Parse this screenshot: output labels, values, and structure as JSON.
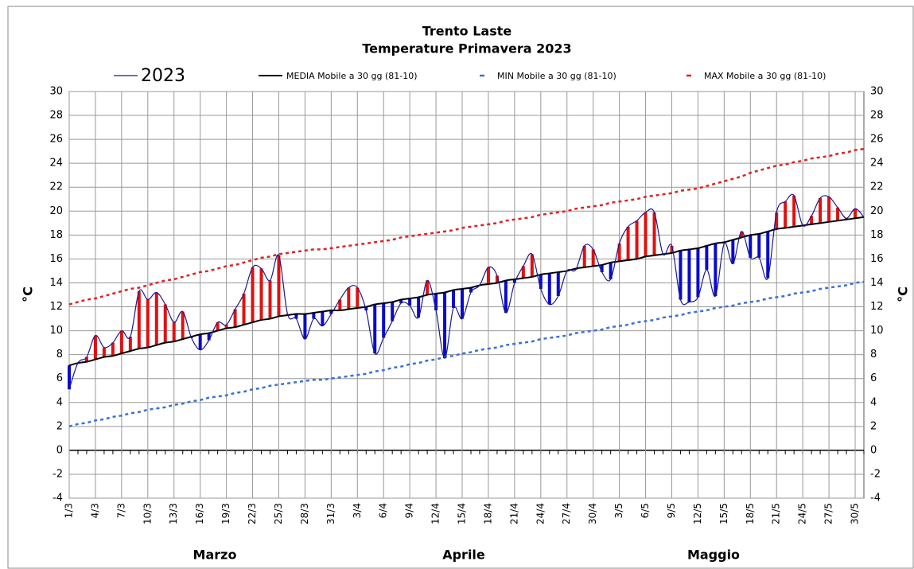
{
  "chart_data": {
    "type": "line",
    "title": "Trento Laste",
    "subtitle": "Temperature Primavera 2023",
    "y_label": "°C",
    "y2_label": "°C",
    "months": [
      "Marzo",
      "Aprile",
      "Maggio"
    ],
    "categories": [
      "1/3",
      null,
      null,
      "4/3",
      null,
      null,
      "7/3",
      null,
      null,
      "10/3",
      null,
      null,
      "13/3",
      null,
      null,
      "16/3",
      null,
      null,
      "19/3",
      null,
      null,
      "22/3",
      null,
      null,
      "25/3",
      null,
      null,
      "28/3",
      null,
      null,
      "31/3",
      null,
      null,
      "3/4",
      null,
      null,
      "6/4",
      null,
      null,
      "9/4",
      null,
      null,
      "12/4",
      null,
      null,
      "15/4",
      null,
      null,
      "18/4",
      null,
      null,
      "21/4",
      null,
      null,
      "24/4",
      null,
      null,
      "27/4",
      null,
      null,
      "30/4",
      null,
      null,
      "3/5",
      null,
      null,
      "6/5",
      null,
      null,
      "9/5",
      null,
      null,
      "12/5",
      null,
      null,
      "15/5",
      null,
      null,
      "18/5",
      null,
      null,
      "21/5",
      null,
      null,
      "24/5",
      null,
      null,
      "27/5",
      null,
      null,
      "30/5",
      null
    ],
    "series": [
      {
        "name": "2023",
        "color": "#1a1a8c",
        "values": [
          5.1,
          7.3,
          7.8,
          9.6,
          8.6,
          9.0,
          10.0,
          9.5,
          13.3,
          12.6,
          13.2,
          12.2,
          10.7,
          11.6,
          9.4,
          8.4,
          9.2,
          10.7,
          10.5,
          11.8,
          13.1,
          15.3,
          15.2,
          14.2,
          16.3,
          11.4,
          11.0,
          9.3,
          11.0,
          10.4,
          11.4,
          12.6,
          13.6,
          13.6,
          11.7,
          8.1,
          9.4,
          10.8,
          12.3,
          12.1,
          11.1,
          14.2,
          11.7,
          7.7,
          11.9,
          11.0,
          13.2,
          13.8,
          15.3,
          14.6,
          11.5,
          14.0,
          15.4,
          16.4,
          13.5,
          12.2,
          12.9,
          15.0,
          15.1,
          17.1,
          16.8,
          14.9,
          14.3,
          17.3,
          18.7,
          19.2,
          19.9,
          19.9,
          16.4,
          17.1,
          12.6,
          12.4,
          12.8,
          15.1,
          12.9,
          17.3,
          15.6,
          18.3,
          16.1,
          16.1,
          14.4,
          19.9,
          20.8,
          21.3,
          18.8,
          19.6,
          21.1,
          21.2,
          20.3,
          19.4,
          20.2,
          19.5
        ]
      },
      {
        "name": "MEDIA Mobile a 30 gg (81-10)",
        "color": "#000000",
        "values": [
          7.1,
          7.3,
          7.4,
          7.6,
          7.8,
          7.9,
          8.1,
          8.3,
          8.5,
          8.6,
          8.8,
          9.0,
          9.1,
          9.3,
          9.5,
          9.7,
          9.8,
          10.0,
          10.2,
          10.3,
          10.5,
          10.7,
          10.9,
          11.0,
          11.2,
          11.3,
          11.4,
          11.4,
          11.5,
          11.6,
          11.7,
          11.7,
          11.8,
          11.9,
          12.0,
          12.2,
          12.3,
          12.4,
          12.6,
          12.7,
          12.8,
          13.0,
          13.1,
          13.2,
          13.4,
          13.5,
          13.6,
          13.8,
          13.9,
          14.0,
          14.2,
          14.3,
          14.4,
          14.5,
          14.7,
          14.8,
          14.9,
          15.0,
          15.2,
          15.3,
          15.4,
          15.5,
          15.7,
          15.8,
          15.9,
          16.0,
          16.2,
          16.3,
          16.4,
          16.5,
          16.7,
          16.8,
          16.9,
          17.1,
          17.3,
          17.4,
          17.6,
          17.8,
          18.0,
          18.1,
          18.3,
          18.5,
          18.6,
          18.7,
          18.8,
          18.9,
          19.0,
          19.1,
          19.2,
          19.3,
          19.4,
          19.5
        ]
      },
      {
        "name": "MIN Mobile a 30 gg (81-10)",
        "color": "#3a6fd8",
        "dashed": true,
        "values": [
          2.0,
          2.2,
          2.3,
          2.5,
          2.6,
          2.8,
          2.9,
          3.1,
          3.2,
          3.4,
          3.5,
          3.6,
          3.8,
          3.9,
          4.1,
          4.2,
          4.4,
          4.5,
          4.6,
          4.8,
          4.9,
          5.1,
          5.2,
          5.4,
          5.5,
          5.6,
          5.7,
          5.8,
          5.9,
          5.9,
          6.0,
          6.1,
          6.2,
          6.3,
          6.4,
          6.6,
          6.7,
          6.9,
          7.0,
          7.2,
          7.3,
          7.5,
          7.6,
          7.8,
          7.9,
          8.1,
          8.2,
          8.4,
          8.5,
          8.6,
          8.8,
          8.9,
          9.0,
          9.1,
          9.3,
          9.4,
          9.5,
          9.6,
          9.8,
          9.9,
          10.0,
          10.1,
          10.3,
          10.4,
          10.5,
          10.7,
          10.8,
          10.9,
          11.1,
          11.2,
          11.3,
          11.5,
          11.6,
          11.7,
          11.9,
          12.0,
          12.1,
          12.3,
          12.4,
          12.5,
          12.7,
          12.8,
          12.9,
          13.1,
          13.2,
          13.3,
          13.5,
          13.6,
          13.7,
          13.8,
          14.0,
          14.1
        ]
      },
      {
        "name": "MAX Mobile a 30 gg (81-10)",
        "color": "#dd2222",
        "dashed": true,
        "values": [
          12.2,
          12.4,
          12.6,
          12.7,
          12.9,
          13.1,
          13.3,
          13.5,
          13.6,
          13.8,
          14.0,
          14.2,
          14.3,
          14.5,
          14.7,
          14.9,
          15.0,
          15.2,
          15.4,
          15.5,
          15.7,
          15.9,
          16.1,
          16.2,
          16.4,
          16.5,
          16.6,
          16.7,
          16.8,
          16.8,
          16.9,
          17.0,
          17.1,
          17.2,
          17.3,
          17.4,
          17.5,
          17.6,
          17.8,
          17.9,
          18.0,
          18.1,
          18.2,
          18.3,
          18.4,
          18.6,
          18.7,
          18.8,
          18.9,
          19.0,
          19.2,
          19.3,
          19.4,
          19.5,
          19.7,
          19.8,
          19.9,
          20.0,
          20.2,
          20.3,
          20.4,
          20.5,
          20.7,
          20.8,
          20.9,
          21.0,
          21.2,
          21.3,
          21.4,
          21.5,
          21.7,
          21.8,
          21.9,
          22.1,
          22.3,
          22.5,
          22.7,
          22.9,
          23.2,
          23.4,
          23.6,
          23.8,
          23.9,
          24.1,
          24.2,
          24.4,
          24.5,
          24.6,
          24.8,
          24.9,
          25.1,
          25.2
        ]
      }
    ],
    "above_color": "#e01010",
    "below_color": "#0a0acc",
    "ylim": [
      -4,
      30
    ],
    "yticks": [
      -4,
      -2,
      0,
      2,
      4,
      6,
      8,
      10,
      12,
      14,
      16,
      18,
      20,
      22,
      24,
      26,
      28,
      30
    ],
    "grid": true
  }
}
